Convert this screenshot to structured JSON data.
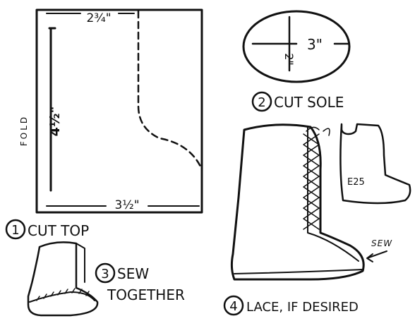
{
  "diagram": {
    "top_pattern": {
      "width_top": "2¾\"",
      "height": "4½\"",
      "width_bottom": "3½\"",
      "fold_label": "FOLD"
    },
    "sole_pattern": {
      "length": "3\"",
      "width": "2\""
    },
    "steps": [
      {
        "number": "1",
        "text": "CUT TOP"
      },
      {
        "number": "2",
        "text": "CUT SOLE"
      },
      {
        "number": "3",
        "text": "SEW",
        "text2": "TOGETHER"
      },
      {
        "number": "4",
        "text": "LACE, IF DESIRED"
      }
    ],
    "sew_label": "SEW",
    "code_label": "E25"
  }
}
